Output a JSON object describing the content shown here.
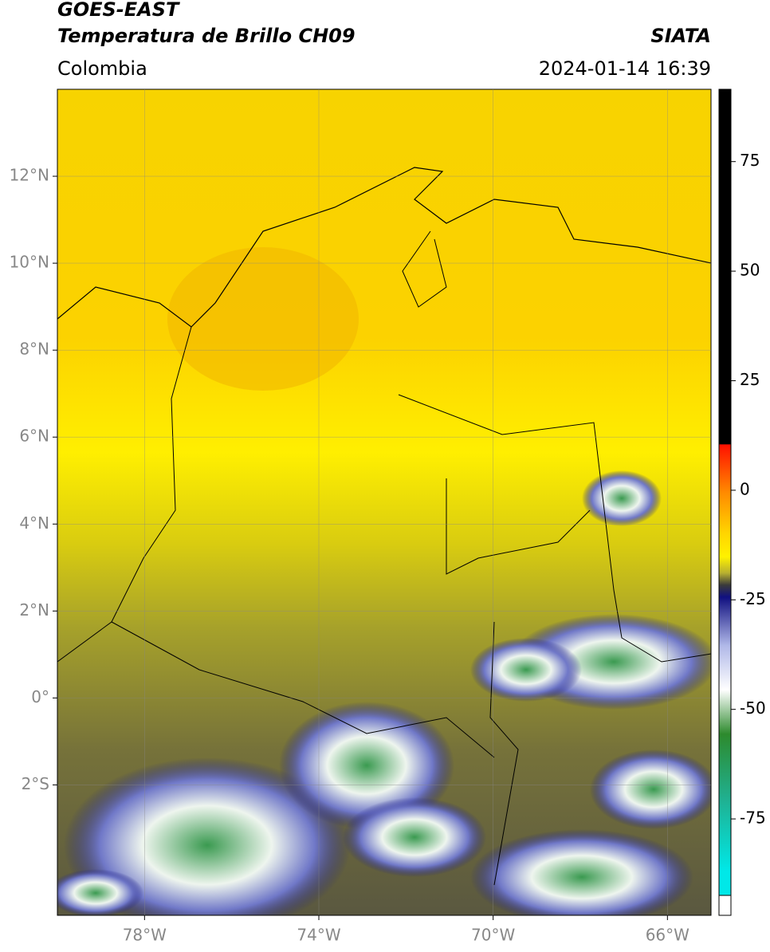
{
  "header": {
    "title": "GOES-EAST",
    "subtitle": "Temperatura de Brillo CH09",
    "region": "Colombia",
    "source": "SIATA",
    "datetime": "2024-01-14 16:39"
  },
  "map": {
    "xlim": [
      -80,
      -65
    ],
    "ylim": [
      -5,
      14
    ],
    "xticks": [
      {
        "value": -78,
        "label": "78°W"
      },
      {
        "value": -74,
        "label": "74°W"
      },
      {
        "value": -70,
        "label": "70°W"
      },
      {
        "value": -66,
        "label": "66°W"
      }
    ],
    "yticks": [
      {
        "value": 12,
        "label": "12°N"
      },
      {
        "value": 10,
        "label": "10°N"
      },
      {
        "value": 8,
        "label": "8°N"
      },
      {
        "value": 6,
        "label": "6°N"
      },
      {
        "value": 4,
        "label": "4°N"
      },
      {
        "value": 2,
        "label": "2°N"
      },
      {
        "value": 0,
        "label": "0°"
      },
      {
        "value": -2,
        "label": "2°S"
      }
    ],
    "grid": true
  },
  "colorbar": {
    "lim": [
      -97,
      91.5
    ],
    "ticks": [
      75,
      50,
      25,
      0,
      -25,
      -50,
      -75
    ]
  }
}
